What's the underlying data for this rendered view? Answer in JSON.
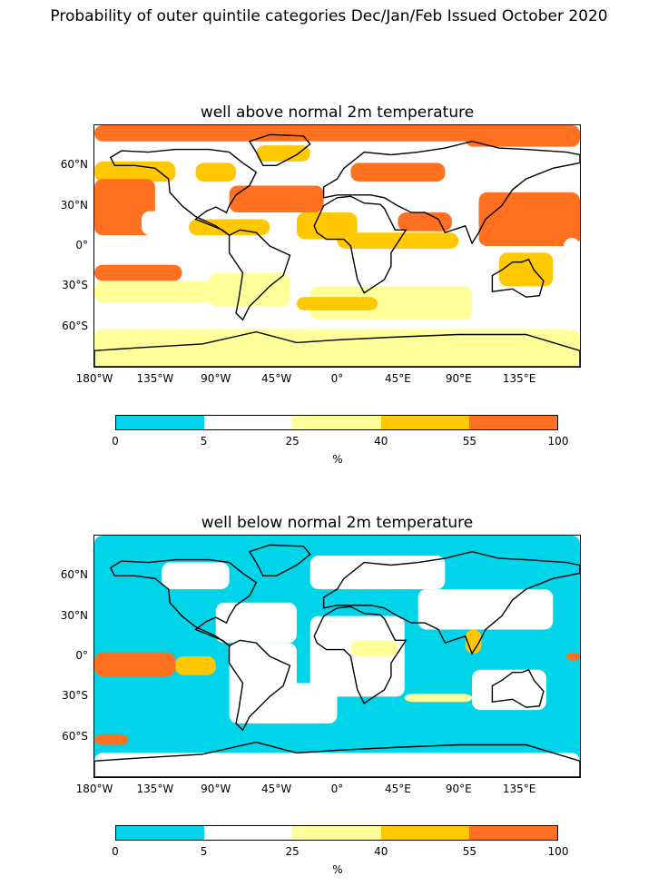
{
  "figure": {
    "title": "Probability of outer quintile categories Dec/Jan/Feb Issued October 2020"
  },
  "panels": [
    {
      "title": "well above normal 2m temperature",
      "regions": [
        {
          "cat": 5,
          "lon": -180,
          "lat": 90,
          "w": 360,
          "h": 12
        },
        {
          "cat": 4,
          "lon": -180,
          "lat": 63,
          "w": 60,
          "h": 15
        },
        {
          "cat": 4,
          "lon": -105,
          "lat": 62,
          "w": 30,
          "h": 14
        },
        {
          "cat": 5,
          "lon": -180,
          "lat": 50,
          "w": 45,
          "h": 42
        },
        {
          "cat": 2,
          "lon": -180,
          "lat": 8,
          "w": 80,
          "h": 18
        },
        {
          "cat": 2,
          "lon": -145,
          "lat": 26,
          "w": 30,
          "h": 18
        },
        {
          "cat": 5,
          "lon": -180,
          "lat": -14,
          "w": 65,
          "h": 12
        },
        {
          "cat": 3,
          "lon": -180,
          "lat": -26,
          "w": 100,
          "h": 16
        },
        {
          "cat": 2,
          "lon": -180,
          "lat": -55,
          "w": 40,
          "h": 12
        },
        {
          "cat": 4,
          "lon": -60,
          "lat": 75,
          "w": 40,
          "h": 12
        },
        {
          "cat": 5,
          "lon": -80,
          "lat": 45,
          "w": 70,
          "h": 20
        },
        {
          "cat": 4,
          "lon": -110,
          "lat": 20,
          "w": 60,
          "h": 12
        },
        {
          "cat": 4,
          "lon": -30,
          "lat": 25,
          "w": 45,
          "h": 20
        },
        {
          "cat": 5,
          "lon": 10,
          "lat": 62,
          "w": 70,
          "h": 14
        },
        {
          "cat": 5,
          "lon": 45,
          "lat": 25,
          "w": 40,
          "h": 14
        },
        {
          "cat": 4,
          "lon": 0,
          "lat": 10,
          "w": 90,
          "h": 12
        },
        {
          "cat": 5,
          "lon": 95,
          "lat": 88,
          "w": 85,
          "h": 14
        },
        {
          "cat": 5,
          "lon": 105,
          "lat": 40,
          "w": 75,
          "h": 40
        },
        {
          "cat": 2,
          "lon": 168,
          "lat": 6,
          "w": 12,
          "h": 12
        },
        {
          "cat": 4,
          "lon": 120,
          "lat": -5,
          "w": 40,
          "h": 25
        },
        {
          "cat": 3,
          "lon": -95,
          "lat": -20,
          "w": 60,
          "h": 25
        },
        {
          "cat": 3,
          "lon": -20,
          "lat": -30,
          "w": 120,
          "h": 25
        },
        {
          "cat": 4,
          "lon": -30,
          "lat": -38,
          "w": 60,
          "h": 10
        },
        {
          "cat": 3,
          "lon": -180,
          "lat": -62,
          "w": 360,
          "h": 28
        }
      ]
    },
    {
      "title": "well below normal 2m temperature",
      "regions": [
        {
          "cat": 1,
          "lon": -180,
          "lat": 90,
          "w": 360,
          "h": 180
        },
        {
          "cat": 2,
          "lon": -130,
          "lat": 70,
          "w": 50,
          "h": 20
        },
        {
          "cat": 2,
          "lon": -20,
          "lat": 75,
          "w": 100,
          "h": 25
        },
        {
          "cat": 2,
          "lon": 60,
          "lat": 50,
          "w": 100,
          "h": 30
        },
        {
          "cat": 2,
          "lon": -90,
          "lat": 40,
          "w": 60,
          "h": 30
        },
        {
          "cat": 2,
          "lon": -80,
          "lat": 10,
          "w": 50,
          "h": 60
        },
        {
          "cat": 2,
          "lon": -20,
          "lat": 30,
          "w": 70,
          "h": 60
        },
        {
          "cat": 3,
          "lon": 10,
          "lat": 12,
          "w": 35,
          "h": 12
        },
        {
          "cat": 4,
          "lon": 95,
          "lat": 20,
          "w": 12,
          "h": 18
        },
        {
          "cat": 2,
          "lon": 100,
          "lat": -10,
          "w": 55,
          "h": 30
        },
        {
          "cat": 5,
          "lon": -180,
          "lat": 3,
          "w": 60,
          "h": 18
        },
        {
          "cat": 4,
          "lon": -120,
          "lat": 0,
          "w": 30,
          "h": 14
        },
        {
          "cat": 5,
          "lon": 170,
          "lat": 3,
          "w": 10,
          "h": 6
        },
        {
          "cat": 2,
          "lon": -60,
          "lat": -20,
          "w": 60,
          "h": 30
        },
        {
          "cat": 3,
          "lon": 50,
          "lat": -28,
          "w": 50,
          "h": 6
        },
        {
          "cat": 5,
          "lon": -180,
          "lat": -58,
          "w": 25,
          "h": 8
        },
        {
          "cat": 2,
          "lon": -180,
          "lat": -72,
          "w": 360,
          "h": 18
        }
      ]
    }
  ],
  "axes": {
    "ytick_labels": [
      "60°N",
      "30°N",
      "0°",
      "30°S",
      "60°S"
    ],
    "xtick_labels": [
      "180°W",
      "135°W",
      "90°W",
      "45°W",
      "0°",
      "45°E",
      "90°E",
      "135°E"
    ]
  },
  "colorbar": {
    "colors": [
      "#00d4e8",
      "#ffffff",
      "#ffff99",
      "#ffc800",
      "#ff7020"
    ],
    "tick_labels": [
      "0",
      "5",
      "25",
      "40",
      "55",
      "100"
    ],
    "unit": "%"
  },
  "map": {
    "land_outline_color": "#000000",
    "ocean_color_default": "#ffffff"
  }
}
